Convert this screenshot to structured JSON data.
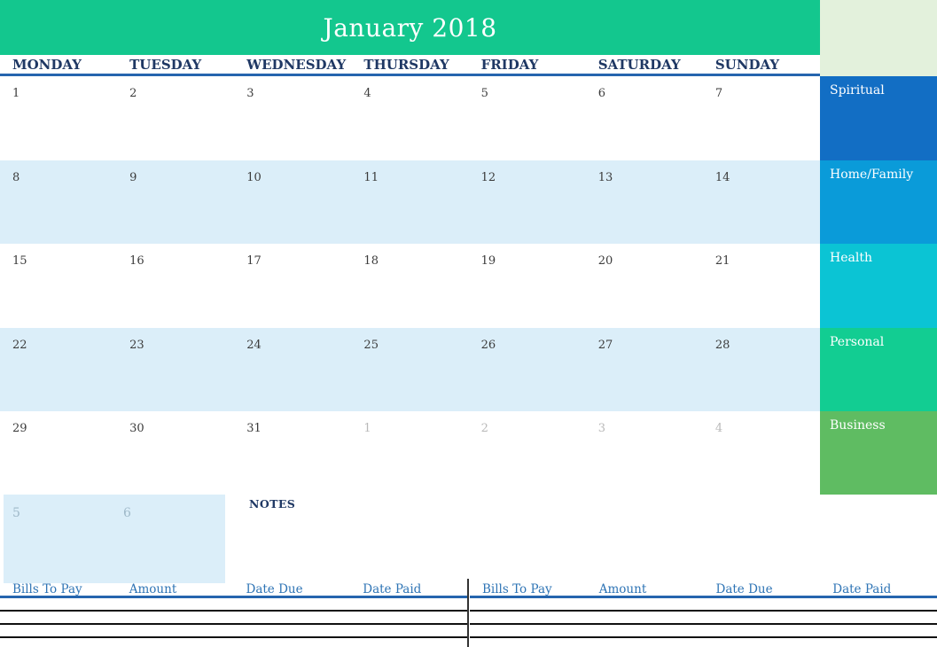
{
  "title": "January 2018",
  "day_headers": [
    "MONDAY",
    "TUESDAY",
    "WEDNESDAY",
    "THURSDAY",
    "FRIDAY",
    "SATURDAY",
    "SUNDAY"
  ],
  "weeks": [
    [
      "1",
      "2",
      "3",
      "4",
      "5",
      "6",
      "7"
    ],
    [
      "8",
      "9",
      "10",
      "11",
      "12",
      "13",
      "14"
    ],
    [
      "15",
      "16",
      "17",
      "18",
      "19",
      "20",
      "21"
    ],
    [
      "22",
      "23",
      "24",
      "25",
      "26",
      "27",
      "28"
    ],
    [
      "29",
      "30",
      "31",
      "1",
      "2",
      "3",
      "4"
    ]
  ],
  "overflow_week": [
    "5",
    "6"
  ],
  "notes_label": "NOTES",
  "sidebar": {
    "corner_color": "#E3F1DC",
    "categories": [
      {
        "label": "Spiritual",
        "color": "#126EC4"
      },
      {
        "label": "Home/Family",
        "color": "#0A9BD9"
      },
      {
        "label": "Health",
        "color": "#0BC4D4"
      },
      {
        "label": "Personal",
        "color": "#12CD92"
      },
      {
        "label": "Business",
        "color": "#5FBC62"
      }
    ]
  },
  "bills": {
    "headers": [
      "Bills To Pay",
      "Amount",
      "Date Due",
      "Date Paid"
    ],
    "empty_row_count": 3
  },
  "colors": {
    "header_green": "#13C78E",
    "row_alt_blue": "#DBEEF9",
    "day_header_text": "#1F3864",
    "rule_blue": "#2565AE",
    "bills_header_text": "#2E74B5",
    "day_text": "#3B3B3B",
    "muted_day_text": "#B9B9B9",
    "muted_day_on_blue": "#9FB9C9",
    "row_line_black": "#111111"
  }
}
